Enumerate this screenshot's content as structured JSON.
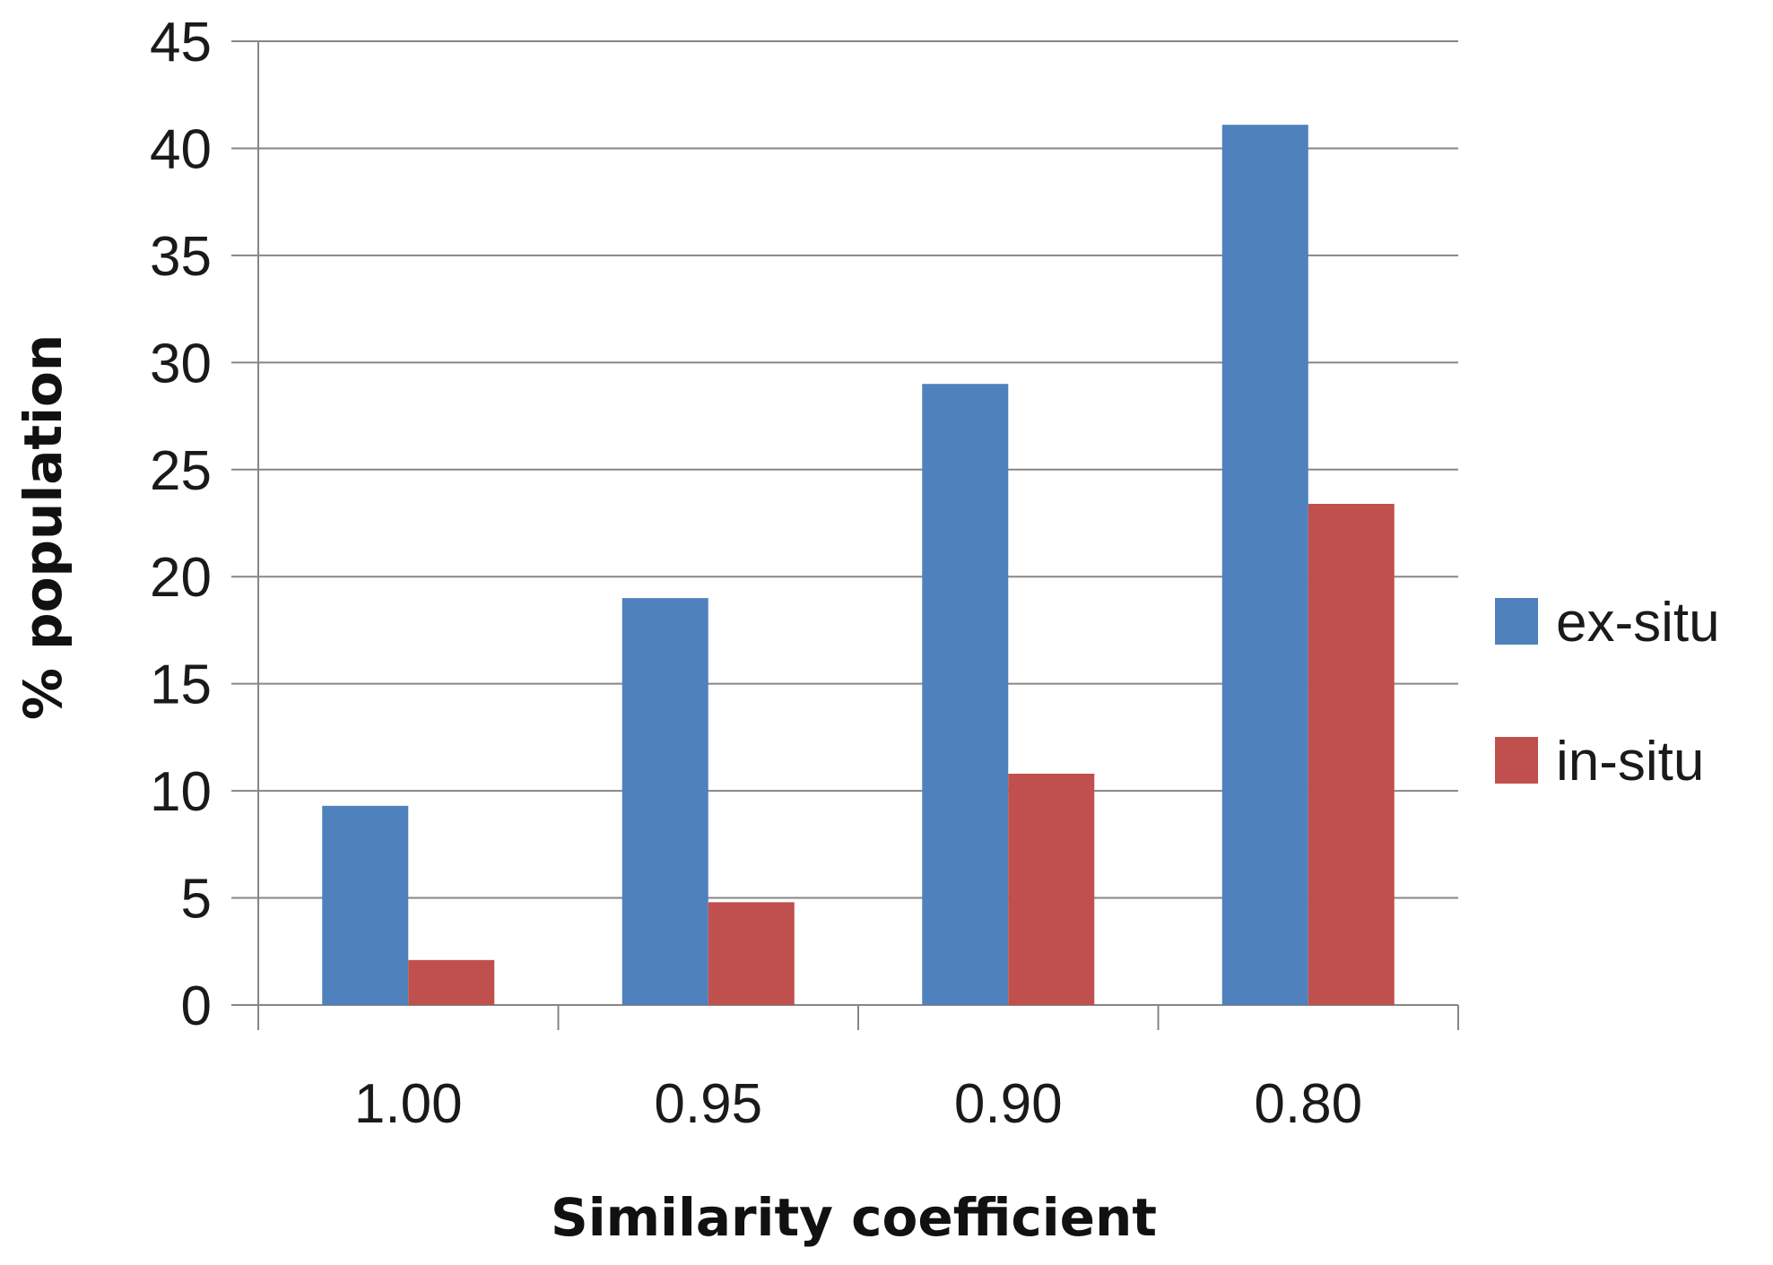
{
  "chart_data": {
    "type": "bar",
    "title": "",
    "xlabel": "Similarity coefficient",
    "ylabel": "% population",
    "categories": [
      "1.00",
      "0.95",
      "0.90",
      "0.80"
    ],
    "ylim": [
      0,
      45
    ],
    "yticks": [
      "0",
      "5",
      "10",
      "15",
      "20",
      "25",
      "30",
      "35",
      "40",
      "45"
    ],
    "grid": "horizontal",
    "legend_position": "right",
    "series": [
      {
        "name": "ex-situ",
        "color": "#4F81BD",
        "values": [
          9.3,
          19.0,
          29.0,
          41.1
        ]
      },
      {
        "name": "in-situ",
        "color": "#C0504D",
        "values": [
          2.1,
          4.8,
          10.8,
          23.4
        ]
      }
    ]
  }
}
